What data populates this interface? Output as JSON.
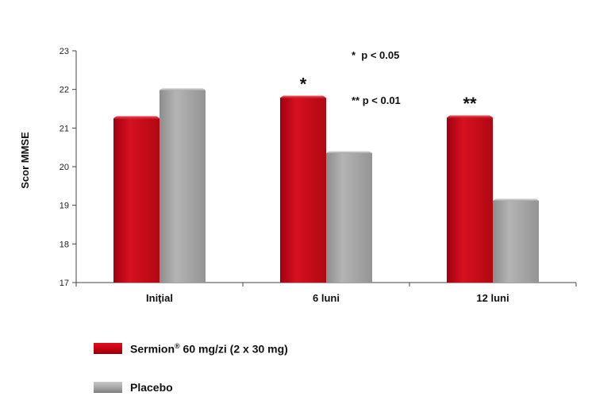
{
  "chart_data": {
    "type": "bar",
    "title": "",
    "xlabel": "",
    "ylabel": "Scor MMSE",
    "ylim": [
      17,
      23
    ],
    "yticks": [
      17,
      18,
      19,
      20,
      21,
      22,
      23
    ],
    "categories": [
      "Iniţial",
      "6 luni",
      "12 luni"
    ],
    "series": [
      {
        "name": "Sermion® 60 mg/zi (2 x 30 mg)",
        "color": "#c8101a",
        "values": [
          21.25,
          21.78,
          21.27
        ]
      },
      {
        "name": "Placebo",
        "color": "#a8a8a8",
        "values": [
          21.98,
          20.35,
          19.12
        ]
      }
    ],
    "significance": [
      "",
      "*",
      "**"
    ],
    "annotations": [
      "*  p < 0.05",
      "** p < 0.01"
    ],
    "grid": false,
    "legend_position": "bottom-left"
  },
  "legend": {
    "item1": {
      "main": "Sermion",
      "sup": "®",
      "rest": " 60 mg/zi (2 x 30 mg)"
    },
    "item2": {
      "label": "Placebo"
    }
  }
}
